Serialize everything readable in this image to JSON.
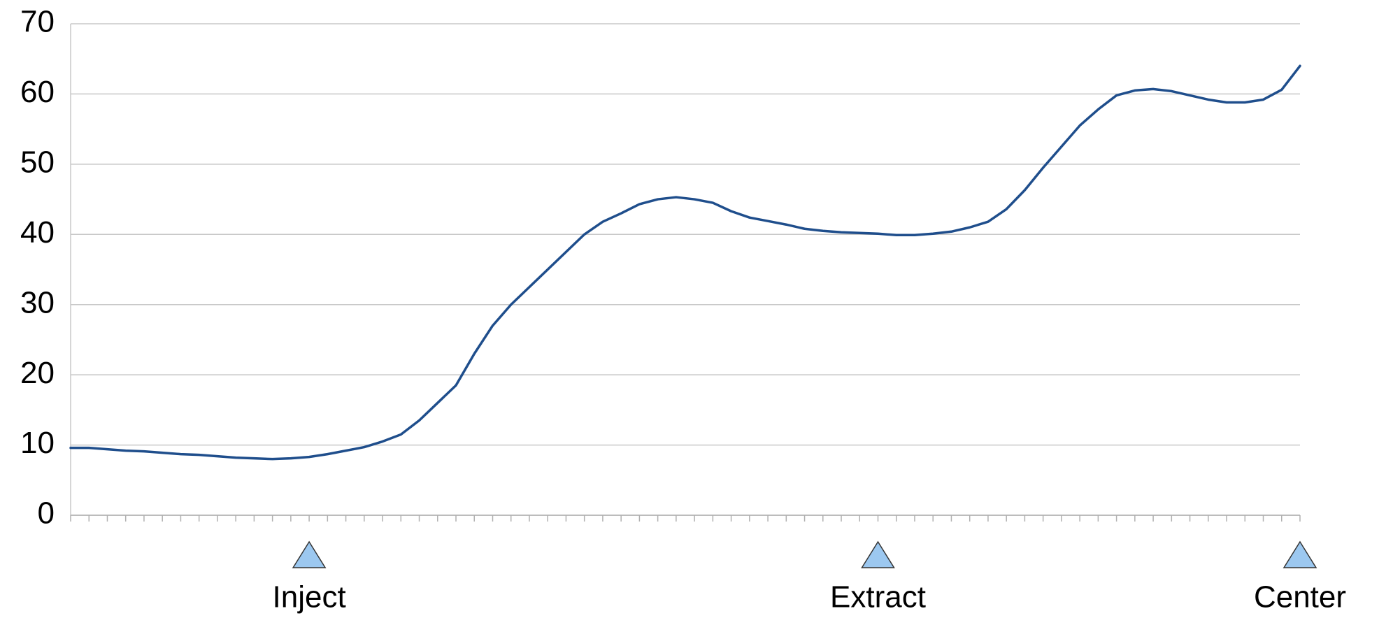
{
  "chart_data": {
    "type": "line",
    "categories": [
      null,
      null,
      null,
      null,
      null,
      null,
      null,
      null,
      null,
      null,
      null,
      null,
      null,
      "Inject",
      null,
      null,
      null,
      null,
      null,
      null,
      null,
      null,
      null,
      null,
      null,
      null,
      null,
      null,
      null,
      null,
      null,
      null,
      null,
      null,
      null,
      null,
      null,
      null,
      null,
      null,
      null,
      null,
      null,
      null,
      "Extract",
      null,
      null,
      null,
      null,
      null,
      null,
      null,
      null,
      null,
      null,
      null,
      null,
      null,
      null,
      null,
      null,
      null,
      null,
      null,
      null,
      null,
      null,
      "Center"
    ],
    "series": [
      {
        "color": "#1f4e8c",
        "values": [
          9.6,
          9.6,
          9.4,
          9.2,
          9.1,
          8.9,
          8.7,
          8.6,
          8.4,
          8.2,
          8.1,
          8.0,
          8.1,
          8.3,
          8.7,
          9.2,
          9.7,
          10.5,
          11.5,
          13.5,
          16,
          18.5,
          23,
          27,
          30,
          32.5,
          35,
          37.5,
          40,
          41.8,
          43,
          44.3,
          45,
          45.3,
          45,
          44.5,
          43.3,
          42.4,
          41.9,
          41.4,
          40.8,
          40.5,
          40.3,
          40.2,
          40.1,
          39.9,
          39.9,
          40.1,
          40.4,
          41.0,
          41.8,
          43.6,
          46.3,
          49.5,
          52.5,
          55.5,
          57.8,
          59.8,
          60.5,
          60.7,
          60.4,
          59.8,
          59.2,
          58.8,
          58.8,
          59.2,
          60.6,
          64
        ]
      }
    ],
    "ylim": [
      0,
      70
    ],
    "yticks": [
      0,
      10,
      20,
      30,
      40,
      50,
      60,
      70
    ],
    "grid": true
  }
}
